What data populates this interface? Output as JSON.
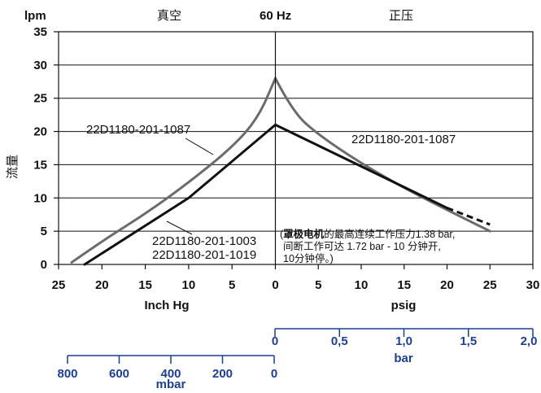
{
  "chart_data": {
    "type": "line",
    "header": {
      "y_unit": "lpm",
      "left_label": "真空",
      "center_label": "60 Hz",
      "right_label": "正压"
    },
    "ylabel": "流量",
    "ylim": [
      0,
      35
    ],
    "y_ticks": [
      "0",
      "5",
      "10",
      "15",
      "20",
      "25",
      "30",
      "35"
    ],
    "x_left": {
      "label": "Inch Hg",
      "range": [
        25,
        0
      ],
      "ticks": [
        "25",
        "20",
        "15",
        "10",
        "5",
        "0"
      ]
    },
    "x_right": {
      "label": "psig",
      "range": [
        0,
        30
      ],
      "ticks": [
        "5",
        "10",
        "15",
        "20",
        "25",
        "30"
      ]
    },
    "series": [
      {
        "name": "22D1180-201-1087",
        "color": "#6b6b6b",
        "vacuum_points": [
          [
            23.5,
            0.3
          ],
          [
            20,
            3.5
          ],
          [
            15,
            7.6
          ],
          [
            10,
            12.3
          ],
          [
            5,
            17.6
          ],
          [
            2,
            22
          ],
          [
            0,
            28
          ]
        ],
        "pressure_points": [
          [
            0,
            28
          ],
          [
            2,
            23
          ],
          [
            5,
            19.5
          ],
          [
            10,
            15.2
          ],
          [
            15,
            11.5
          ],
          [
            20,
            8.2
          ],
          [
            25,
            5
          ]
        ]
      },
      {
        "name": "22D1180-201-1003 / 22D1180-201-1019",
        "color": "#111111",
        "vacuum_points": [
          [
            22,
            0
          ],
          [
            10,
            10
          ],
          [
            0,
            21
          ]
        ],
        "pressure_points": [
          [
            0,
            21
          ],
          [
            20,
            8.5
          ]
        ],
        "dashed_points": [
          [
            20,
            8.5
          ],
          [
            25,
            6
          ]
        ]
      }
    ],
    "labels": {
      "gray_left": "22D1180-201-1087",
      "gray_right": "22D1180-201-1087",
      "black_line1": "22D1180-201-1003",
      "black_line2": "22D1180-201-1019"
    },
    "annotation": {
      "open_paren": "(",
      "bold": "罩极电机",
      "line1_rest": "的最高连续工作压力1.38 bar,",
      "line2": "间断工作可达 1.72 bar - 10 分钟开,",
      "line3": "10分钟停。)"
    },
    "bar_axis": {
      "label": "bar",
      "ticks": [
        "0",
        "0,5",
        "1,0",
        "1,5",
        "2,0"
      ],
      "color": "#1d3f8f"
    },
    "mbar_axis": {
      "label": "mbar",
      "ticks": [
        "800",
        "600",
        "400",
        "200",
        "0"
      ],
      "color": "#1d3f8f"
    }
  }
}
